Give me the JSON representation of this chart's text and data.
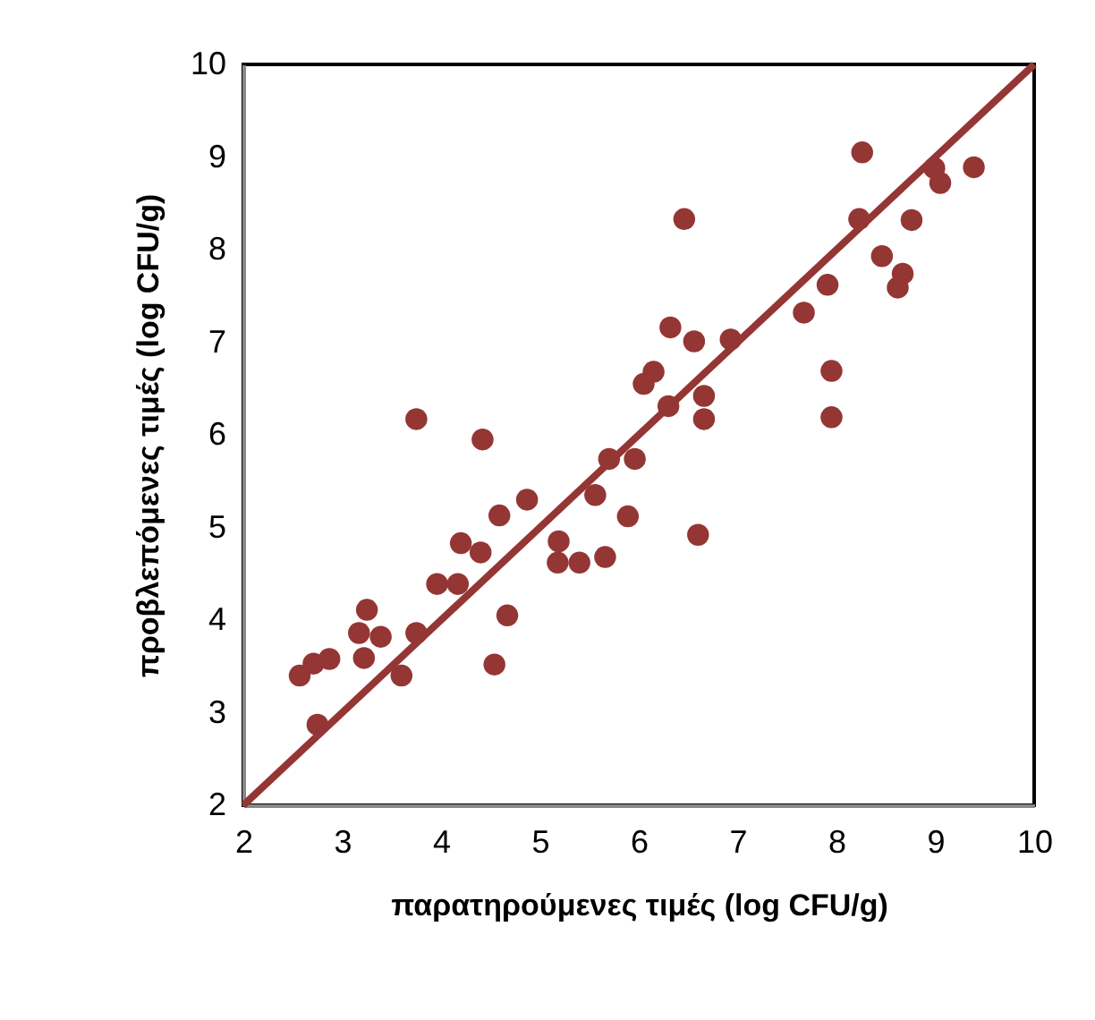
{
  "chart_data": {
    "type": "scatter",
    "xlabel": "παρατηρούμενες τιμές (log CFU/g)",
    "ylabel": "προβλεπόμενες τιμές (log CFU/g)",
    "xlim": [
      2,
      10
    ],
    "ylim": [
      2,
      10
    ],
    "xticks": [
      2,
      3,
      4,
      5,
      6,
      7,
      8,
      9,
      10
    ],
    "yticks": [
      2,
      3,
      4,
      5,
      6,
      7,
      8,
      9,
      10
    ],
    "grid": false,
    "marker": "circle",
    "series": [
      {
        "color": "#943634",
        "x": [
          2.57,
          2.71,
          2.87,
          2.75,
          3.17,
          3.25,
          3.22,
          3.39,
          3.6,
          3.75,
          3.75,
          3.96,
          4.17,
          4.2,
          4.4,
          4.42,
          4.54,
          4.59,
          4.67,
          4.87,
          5.19,
          5.18,
          5.4,
          5.56,
          5.66,
          5.7,
          5.89,
          5.96,
          6.05,
          6.15,
          6.3,
          6.32,
          6.46,
          6.56,
          6.6,
          6.66,
          6.66,
          6.93,
          7.67,
          7.91,
          7.95,
          7.95,
          8.23,
          8.26,
          8.46,
          8.62,
          8.67,
          8.76,
          8.99,
          9.05,
          9.39
        ],
        "values": [
          3.4,
          3.53,
          3.58,
          2.87,
          3.86,
          4.11,
          3.59,
          3.82,
          3.4,
          3.86,
          6.17,
          4.39,
          4.39,
          4.83,
          4.73,
          5.95,
          3.52,
          5.13,
          4.05,
          5.3,
          4.85,
          4.62,
          4.62,
          5.35,
          4.68,
          5.74,
          5.12,
          5.74,
          6.55,
          6.68,
          6.31,
          7.16,
          8.33,
          7.01,
          4.92,
          6.42,
          6.17,
          7.03,
          7.32,
          7.62,
          6.69,
          6.19,
          8.33,
          9.05,
          7.93,
          7.59,
          7.74,
          8.32,
          8.88,
          8.72,
          8.89
        ]
      },
      {
        "type": "line",
        "color": "#943634",
        "line_style": "solid",
        "marker": "none",
        "x": [
          2,
          10
        ],
        "values": [
          2,
          10
        ]
      }
    ]
  }
}
